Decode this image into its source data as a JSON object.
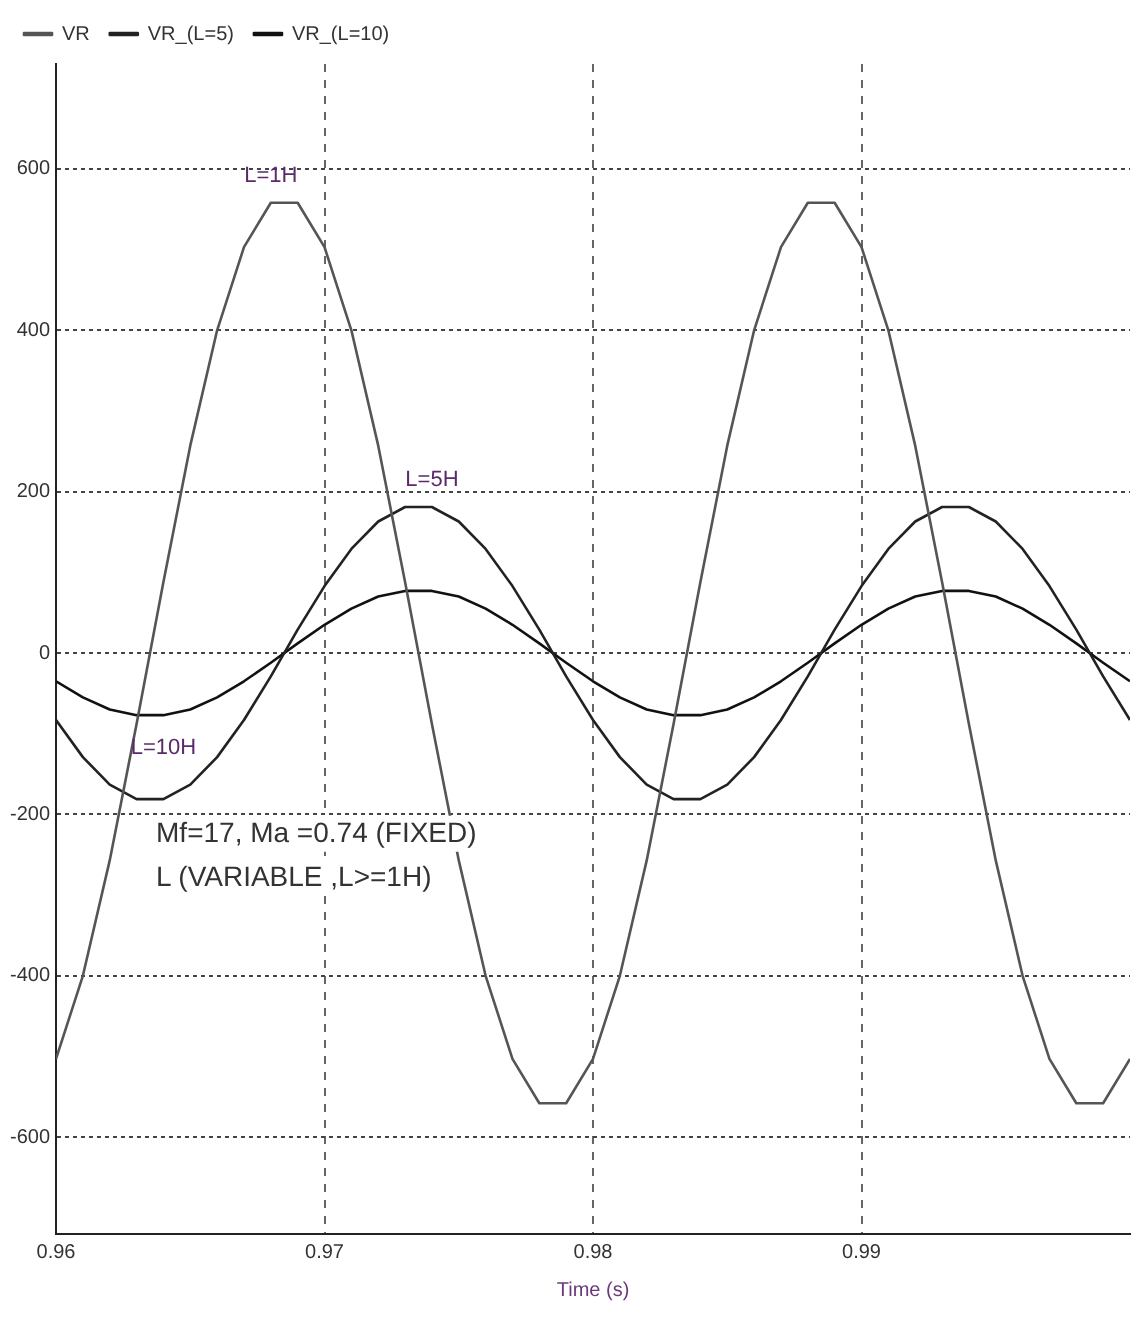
{
  "chart_data": {
    "type": "line",
    "xlabel": "Time (s)",
    "x": [
      0.96,
      0.961,
      0.962,
      0.963,
      0.964,
      0.965,
      0.966,
      0.967,
      0.968,
      0.969,
      0.97,
      0.971,
      0.972,
      0.973,
      0.974,
      0.975,
      0.976,
      0.977,
      0.978,
      0.979,
      0.98,
      0.981,
      0.982,
      0.983,
      0.984,
      0.985,
      0.986,
      0.987,
      0.988,
      0.989,
      0.99,
      0.991,
      0.992,
      0.993,
      0.994,
      0.995,
      0.996,
      0.997,
      0.998,
      0.999,
      1.0
    ],
    "series": [
      {
        "name": "VR",
        "color": "#555555",
        "values": [
          -503,
          -400,
          -257,
          -88,
          88,
          257,
          400,
          503,
          558,
          558,
          503,
          400,
          257,
          88,
          -88,
          -257,
          -400,
          -503,
          -558,
          -558,
          -503,
          -400,
          -257,
          -88,
          88,
          257,
          400,
          503,
          558,
          558,
          503,
          400,
          257,
          88,
          -88,
          -257,
          -400,
          -503,
          -558,
          -558,
          -503
        ]
      },
      {
        "name": "VR_(L=5)",
        "color": "#222222",
        "values": [
          -83,
          -129,
          -163,
          -181,
          -181,
          -163,
          -129,
          -83,
          -29,
          29,
          83,
          129,
          163,
          181,
          181,
          163,
          129,
          83,
          29,
          -29,
          -83,
          -129,
          -163,
          -181,
          -181,
          -163,
          -129,
          -83,
          -29,
          29,
          83,
          129,
          163,
          181,
          181,
          163,
          129,
          83,
          29,
          -29,
          -83
        ]
      },
      {
        "name": "VR_(L=10)",
        "color": "#111111",
        "values": [
          -35,
          -55,
          -70,
          -77,
          -77,
          -70,
          -55,
          -35,
          -12,
          12,
          35,
          55,
          70,
          77,
          77,
          70,
          55,
          35,
          12,
          -12,
          -35,
          -55,
          -70,
          -77,
          -77,
          -70,
          -55,
          -35,
          -12,
          12,
          35,
          55,
          70,
          77,
          77,
          70,
          55,
          35,
          12,
          -12,
          -35
        ]
      }
    ],
    "xlim": [
      0.96,
      1.0
    ],
    "xticks": [
      0.96,
      0.97,
      0.98,
      0.99
    ],
    "ylim": [
      -720,
      730
    ],
    "yticks": [
      -600,
      -400,
      -200,
      0,
      200,
      400,
      600
    ],
    "grid": true,
    "legend": "top left",
    "marker": "none",
    "line_style": "solid",
    "annotations": [
      {
        "text": "L=1H",
        "x": 0.968,
        "y": 558
      },
      {
        "text": "L=5H",
        "x": 0.974,
        "y": 181
      },
      {
        "text": "L=10H",
        "x": 0.964,
        "y": -77
      },
      "Mf=17, Ma =0.74 (FIXED)",
      "L (VARIABLE ,L>=1H)"
    ]
  }
}
